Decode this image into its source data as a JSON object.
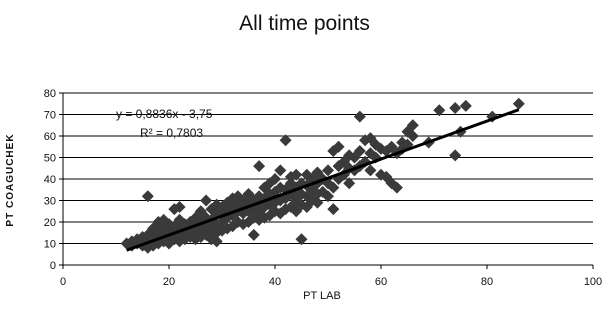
{
  "chart_data": {
    "type": "scatter",
    "title": "All time points",
    "xlabel": "PT LAB",
    "ylabel": "PT COAGUCHEK",
    "xlim": [
      0,
      100
    ],
    "ylim": [
      0,
      80
    ],
    "x_ticks": [
      "0",
      "20",
      "40",
      "60",
      "80",
      "100"
    ],
    "y_ticks": [
      "0",
      "10",
      "20",
      "30",
      "40",
      "50",
      "60",
      "70",
      "80"
    ],
    "grid": "horizontal",
    "trendline": {
      "slope": 0.8836,
      "intercept": -3.75,
      "x_range": [
        12,
        86
      ],
      "equation_label": "y = 0,8836x - 3,75",
      "r2_label": "R² = 0,7803"
    },
    "marker_color": "#3a3a3a",
    "trendline_color": "#000000",
    "points": [
      [
        12,
        10
      ],
      [
        13,
        9
      ],
      [
        13,
        11
      ],
      [
        14,
        10
      ],
      [
        14,
        12
      ],
      [
        15,
        9
      ],
      [
        15,
        11
      ],
      [
        15,
        13
      ],
      [
        16,
        8
      ],
      [
        16,
        10
      ],
      [
        16,
        12
      ],
      [
        16,
        14
      ],
      [
        16,
        32
      ],
      [
        17,
        9
      ],
      [
        17,
        11
      ],
      [
        17,
        13
      ],
      [
        17,
        15
      ],
      [
        17,
        17
      ],
      [
        18,
        10
      ],
      [
        18,
        12
      ],
      [
        18,
        14
      ],
      [
        18,
        16
      ],
      [
        18,
        20
      ],
      [
        19,
        11
      ],
      [
        19,
        13
      ],
      [
        19,
        15
      ],
      [
        19,
        18
      ],
      [
        19,
        21
      ],
      [
        20,
        10
      ],
      [
        20,
        12
      ],
      [
        20,
        14
      ],
      [
        20,
        16
      ],
      [
        20,
        19
      ],
      [
        21,
        12
      ],
      [
        21,
        15
      ],
      [
        21,
        18
      ],
      [
        21,
        26
      ],
      [
        22,
        11
      ],
      [
        22,
        14
      ],
      [
        22,
        17
      ],
      [
        22,
        21
      ],
      [
        22,
        27
      ],
      [
        23,
        12
      ],
      [
        23,
        15
      ],
      [
        23,
        19
      ],
      [
        24,
        13
      ],
      [
        24,
        16
      ],
      [
        24,
        20
      ],
      [
        25,
        12
      ],
      [
        25,
        14
      ],
      [
        25,
        18
      ],
      [
        25,
        22
      ],
      [
        26,
        13
      ],
      [
        26,
        16
      ],
      [
        26,
        20
      ],
      [
        26,
        25
      ],
      [
        27,
        14
      ],
      [
        27,
        18
      ],
      [
        27,
        22
      ],
      [
        27,
        30
      ],
      [
        28,
        12
      ],
      [
        28,
        16
      ],
      [
        28,
        21
      ],
      [
        28,
        26
      ],
      [
        29,
        11
      ],
      [
        29,
        15
      ],
      [
        29,
        19
      ],
      [
        29,
        24
      ],
      [
        29,
        28
      ],
      [
        30,
        16
      ],
      [
        30,
        20
      ],
      [
        30,
        24
      ],
      [
        30,
        27
      ],
      [
        31,
        17
      ],
      [
        31,
        22
      ],
      [
        31,
        26
      ],
      [
        31,
        29
      ],
      [
        32,
        18
      ],
      [
        32,
        23
      ],
      [
        32,
        27
      ],
      [
        32,
        31
      ],
      [
        33,
        20
      ],
      [
        33,
        25
      ],
      [
        33,
        28
      ],
      [
        33,
        32
      ],
      [
        34,
        19
      ],
      [
        34,
        24
      ],
      [
        34,
        27
      ],
      [
        34,
        30
      ],
      [
        35,
        20
      ],
      [
        35,
        25
      ],
      [
        35,
        29
      ],
      [
        35,
        33
      ],
      [
        36,
        14
      ],
      [
        36,
        22
      ],
      [
        36,
        26
      ],
      [
        36,
        30
      ],
      [
        37,
        21
      ],
      [
        37,
        25
      ],
      [
        37,
        28
      ],
      [
        37,
        32
      ],
      [
        37,
        46
      ],
      [
        38,
        22
      ],
      [
        38,
        27
      ],
      [
        38,
        31
      ],
      [
        38,
        36
      ],
      [
        39,
        23
      ],
      [
        39,
        28
      ],
      [
        39,
        33
      ],
      [
        39,
        38
      ],
      [
        40,
        25
      ],
      [
        40,
        29
      ],
      [
        40,
        34
      ],
      [
        40,
        40
      ],
      [
        41,
        24
      ],
      [
        41,
        30
      ],
      [
        41,
        36
      ],
      [
        41,
        44
      ],
      [
        42,
        26
      ],
      [
        42,
        31
      ],
      [
        42,
        35
      ],
      [
        42,
        58
      ],
      [
        43,
        27
      ],
      [
        43,
        33
      ],
      [
        43,
        38
      ],
      [
        43,
        41
      ],
      [
        44,
        25
      ],
      [
        44,
        30
      ],
      [
        44,
        36
      ],
      [
        44,
        42
      ],
      [
        45,
        12
      ],
      [
        45,
        28
      ],
      [
        45,
        33
      ],
      [
        45,
        38
      ],
      [
        46,
        27
      ],
      [
        46,
        32
      ],
      [
        46,
        37
      ],
      [
        46,
        42
      ],
      [
        47,
        30
      ],
      [
        47,
        35
      ],
      [
        47,
        40
      ],
      [
        48,
        29
      ],
      [
        48,
        33
      ],
      [
        48,
        38
      ],
      [
        48,
        43
      ],
      [
        49,
        34
      ],
      [
        49,
        40
      ],
      [
        50,
        32
      ],
      [
        50,
        38
      ],
      [
        50,
        44
      ],
      [
        51,
        26
      ],
      [
        51,
        36
      ],
      [
        51,
        53
      ],
      [
        52,
        40
      ],
      [
        52,
        46
      ],
      [
        52,
        55
      ],
      [
        53,
        42
      ],
      [
        53,
        48
      ],
      [
        54,
        38
      ],
      [
        54,
        45
      ],
      [
        54,
        51
      ],
      [
        55,
        44
      ],
      [
        55,
        50
      ],
      [
        56,
        46
      ],
      [
        56,
        53
      ],
      [
        56,
        69
      ],
      [
        57,
        48
      ],
      [
        57,
        58
      ],
      [
        58,
        44
      ],
      [
        58,
        52
      ],
      [
        58,
        59
      ],
      [
        59,
        50
      ],
      [
        59,
        56
      ],
      [
        60,
        42
      ],
      [
        60,
        54
      ],
      [
        61,
        41
      ],
      [
        61,
        53
      ],
      [
        62,
        38
      ],
      [
        62,
        55
      ],
      [
        63,
        36
      ],
      [
        63,
        52
      ],
      [
        64,
        54
      ],
      [
        64,
        57
      ],
      [
        65,
        56
      ],
      [
        65,
        62
      ],
      [
        66,
        60
      ],
      [
        66,
        65
      ],
      [
        69,
        57
      ],
      [
        71,
        72
      ],
      [
        74,
        51
      ],
      [
        74,
        73
      ],
      [
        75,
        62
      ],
      [
        76,
        74
      ],
      [
        81,
        69
      ],
      [
        86,
        75
      ]
    ]
  }
}
